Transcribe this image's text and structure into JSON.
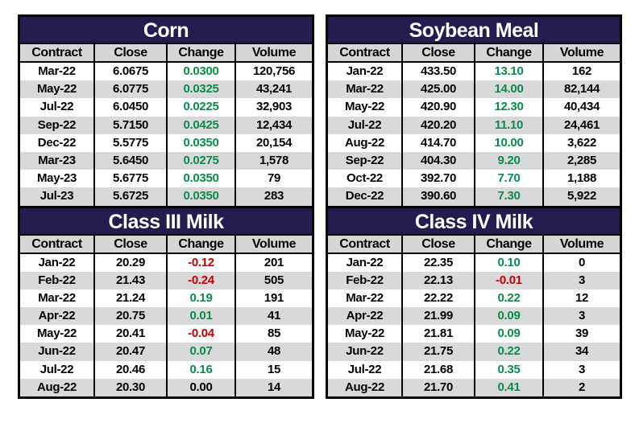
{
  "page": {
    "background": "#ffffff"
  },
  "colors": {
    "page_bg": "#ffffff",
    "title_bar_bg": "#221d4e",
    "title_text": "#ffffff",
    "header_bg": "#d6d6d6",
    "row_bg": "#ffffff",
    "row_stripe_bg": "#d9d9d9",
    "grid_border": "#000000",
    "value_text": "#000000",
    "positive_change": "#0c8c4c",
    "negative_change": "#c40000",
    "zero_change": "#000000"
  },
  "chart_data": [
    {
      "type": "table",
      "title": "Corn",
      "position": "top-left",
      "columns": [
        "Contract",
        "Close",
        "Change",
        "Volume"
      ],
      "rows": [
        [
          "Mar-22",
          "6.0675",
          "0.0300",
          "120,756"
        ],
        [
          "May-22",
          "6.0775",
          "0.0325",
          "43,241"
        ],
        [
          "Jul-22",
          "6.0450",
          "0.0225",
          "32,903"
        ],
        [
          "Sep-22",
          "5.7150",
          "0.0425",
          "12,434"
        ],
        [
          "Dec-22",
          "5.5775",
          "0.0350",
          "20,154"
        ],
        [
          "Mar-23",
          "5.6450",
          "0.0275",
          "1,578"
        ],
        [
          "May-23",
          "5.6775",
          "0.0350",
          "79"
        ],
        [
          "Jul-23",
          "5.6725",
          "0.0350",
          "283"
        ]
      ],
      "change_colors": [
        "positive",
        "positive",
        "positive",
        "positive",
        "positive",
        "positive",
        "positive",
        "positive"
      ]
    },
    {
      "type": "table",
      "title": "Soybean Meal",
      "position": "top-right",
      "columns": [
        "Contract",
        "Close",
        "Change",
        "Volume"
      ],
      "rows": [
        [
          "Jan-22",
          "433.50",
          "13.10",
          "162"
        ],
        [
          "Mar-22",
          "425.00",
          "14.00",
          "82,144"
        ],
        [
          "May-22",
          "420.90",
          "12.30",
          "40,434"
        ],
        [
          "Jul-22",
          "420.20",
          "11.10",
          "24,461"
        ],
        [
          "Aug-22",
          "414.70",
          "10.00",
          "3,622"
        ],
        [
          "Sep-22",
          "404.30",
          "9.20",
          "2,285"
        ],
        [
          "Oct-22",
          "392.70",
          "7.70",
          "1,188"
        ],
        [
          "Dec-22",
          "390.60",
          "7.30",
          "5,922"
        ]
      ],
      "change_colors": [
        "positive",
        "positive",
        "positive",
        "positive",
        "positive",
        "positive",
        "positive",
        "positive"
      ]
    },
    {
      "type": "table",
      "title": "Class III Milk",
      "position": "bottom-left",
      "columns": [
        "Contract",
        "Close",
        "Change",
        "Volume"
      ],
      "rows": [
        [
          "Jan-22",
          "20.29",
          "-0.12",
          "201"
        ],
        [
          "Feb-22",
          "21.43",
          "-0.24",
          "505"
        ],
        [
          "Mar-22",
          "21.24",
          "0.19",
          "191"
        ],
        [
          "Apr-22",
          "20.75",
          "0.01",
          "41"
        ],
        [
          "May-22",
          "20.41",
          "-0.04",
          "85"
        ],
        [
          "Jun-22",
          "20.47",
          "0.07",
          "48"
        ],
        [
          "Jul-22",
          "20.46",
          "0.16",
          "15"
        ],
        [
          "Aug-22",
          "20.30",
          "0.00",
          "14"
        ]
      ],
      "change_colors": [
        "negative",
        "negative",
        "positive",
        "positive",
        "negative",
        "positive",
        "positive",
        "zero"
      ]
    },
    {
      "type": "table",
      "title": "Class IV Milk",
      "position": "bottom-right",
      "columns": [
        "Contract",
        "Close",
        "Change",
        "Volume"
      ],
      "rows": [
        [
          "Jan-22",
          "22.35",
          "0.10",
          "0"
        ],
        [
          "Feb-22",
          "22.13",
          "-0.01",
          "3"
        ],
        [
          "Mar-22",
          "22.22",
          "0.22",
          "12"
        ],
        [
          "Apr-22",
          "21.99",
          "0.09",
          "3"
        ],
        [
          "May-22",
          "21.81",
          "0.09",
          "39"
        ],
        [
          "Jun-22",
          "21.75",
          "0.22",
          "34"
        ],
        [
          "Jul-22",
          "21.68",
          "0.35",
          "3"
        ],
        [
          "Aug-22",
          "21.70",
          "0.41",
          "2"
        ]
      ],
      "change_colors": [
        "positive",
        "negative",
        "positive",
        "positive",
        "positive",
        "positive",
        "positive",
        "positive"
      ]
    }
  ]
}
